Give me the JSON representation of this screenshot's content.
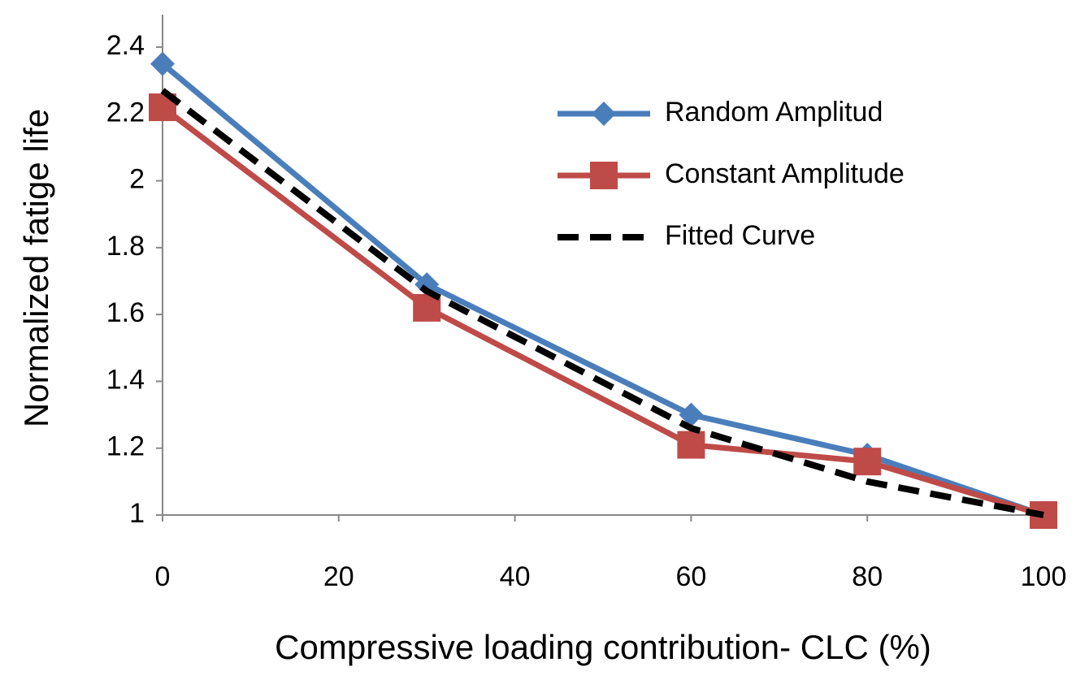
{
  "chart_data": {
    "type": "line",
    "x_label": "Compressive loading contribution- CLC (%)",
    "y_label": "Normalized fatige life",
    "x": [
      0,
      30,
      60,
      80,
      100
    ],
    "series": [
      {
        "name": "Random Amplitud",
        "color": "#4a7ebb",
        "marker": "diamond",
        "dashed": false,
        "values": [
          2.35,
          1.69,
          1.3,
          1.18,
          1.0
        ]
      },
      {
        "name": "Constant Amplitude",
        "color": "#be4b48",
        "marker": "square",
        "dashed": false,
        "values": [
          2.22,
          1.62,
          1.21,
          1.16,
          1.0
        ]
      },
      {
        "name": "Fitted Curve",
        "color": "#000000",
        "marker": "none",
        "dashed": true,
        "values": [
          2.27,
          1.67,
          1.26,
          1.1,
          1.0
        ]
      }
    ],
    "xlim": [
      0,
      100
    ],
    "xticks": [
      0,
      20,
      40,
      60,
      80,
      100
    ],
    "ylim": [
      1,
      2.4
    ],
    "yticks": [
      1,
      1.2,
      1.4,
      1.6,
      1.8,
      2,
      2.2,
      2.4
    ],
    "grid": false,
    "legend": "upper-right"
  }
}
